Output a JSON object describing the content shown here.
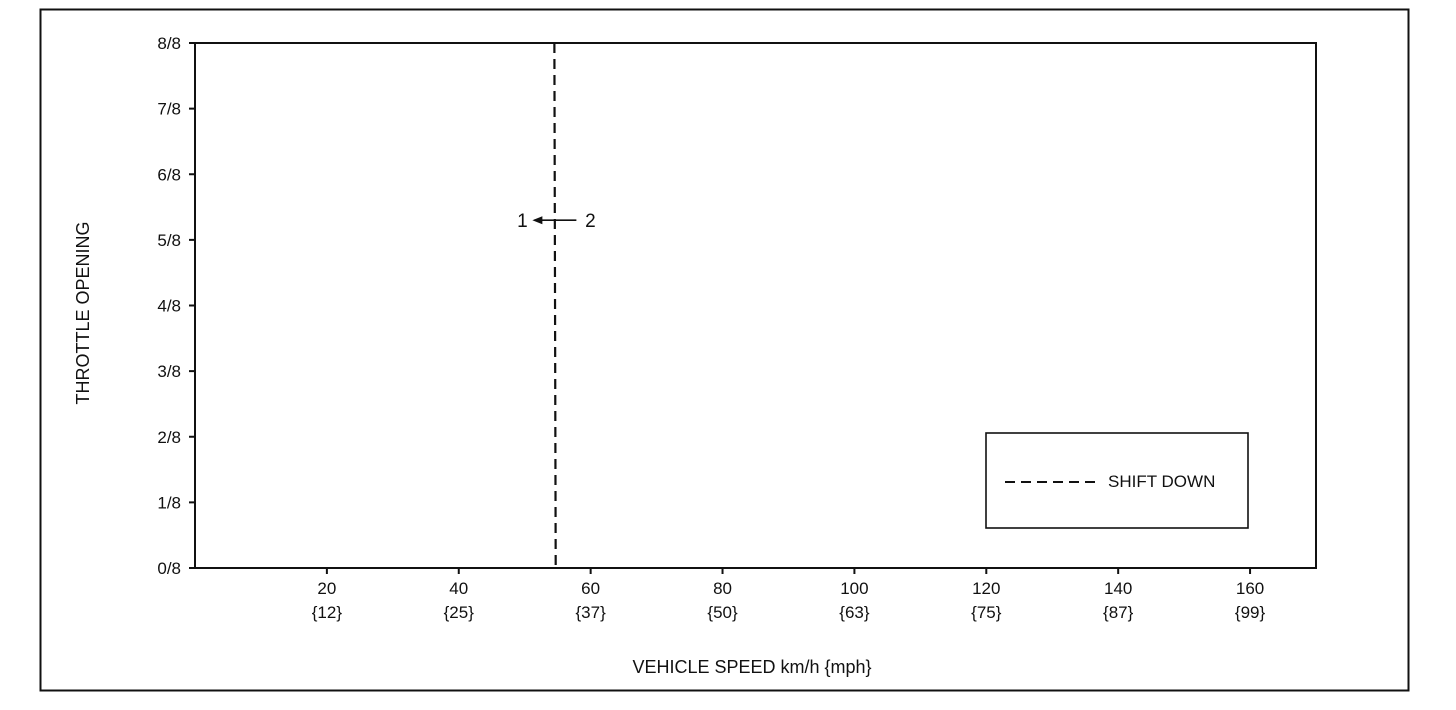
{
  "chart_data": {
    "type": "line",
    "xlabel": "VEHICLE SPEED km/h {mph}",
    "ylabel": "THROTTLE OPENING",
    "xlim": [
      0,
      170
    ],
    "ylim": [
      0,
      8
    ],
    "x_ticks": [
      {
        "value": 20,
        "label": "20",
        "sublabel": "{12}"
      },
      {
        "value": 40,
        "label": "40",
        "sublabel": "{25}"
      },
      {
        "value": 60,
        "label": "60",
        "sublabel": "{37}"
      },
      {
        "value": 80,
        "label": "80",
        "sublabel": "{50}"
      },
      {
        "value": 100,
        "label": "100",
        "sublabel": "{63}"
      },
      {
        "value": 120,
        "label": "120",
        "sublabel": "{75}"
      },
      {
        "value": 140,
        "label": "140",
        "sublabel": "{87}"
      },
      {
        "value": 160,
        "label": "160",
        "sublabel": "{99}"
      }
    ],
    "y_ticks": [
      {
        "value": 0,
        "label": "0/8"
      },
      {
        "value": 1,
        "label": "1/8"
      },
      {
        "value": 2,
        "label": "2/8"
      },
      {
        "value": 3,
        "label": "3/8"
      },
      {
        "value": 4,
        "label": "4/8"
      },
      {
        "value": 5,
        "label": "5/8"
      },
      {
        "value": 6,
        "label": "6/8"
      },
      {
        "value": 7,
        "label": "7/8"
      },
      {
        "value": 8,
        "label": "8/8"
      }
    ],
    "series": [
      {
        "name": "SHIFT DOWN",
        "style": "dashed",
        "color": "#111111",
        "points": [
          {
            "x": 54.5,
            "y": 8
          },
          {
            "x": 54.7,
            "y": 0
          }
        ]
      }
    ],
    "annotations": [
      {
        "from": "2",
        "to": "1",
        "x": 54.5,
        "y": 5.3
      }
    ],
    "legend": {
      "position": "bottom-right",
      "entries": [
        "SHIFT DOWN"
      ]
    },
    "grid": false
  }
}
